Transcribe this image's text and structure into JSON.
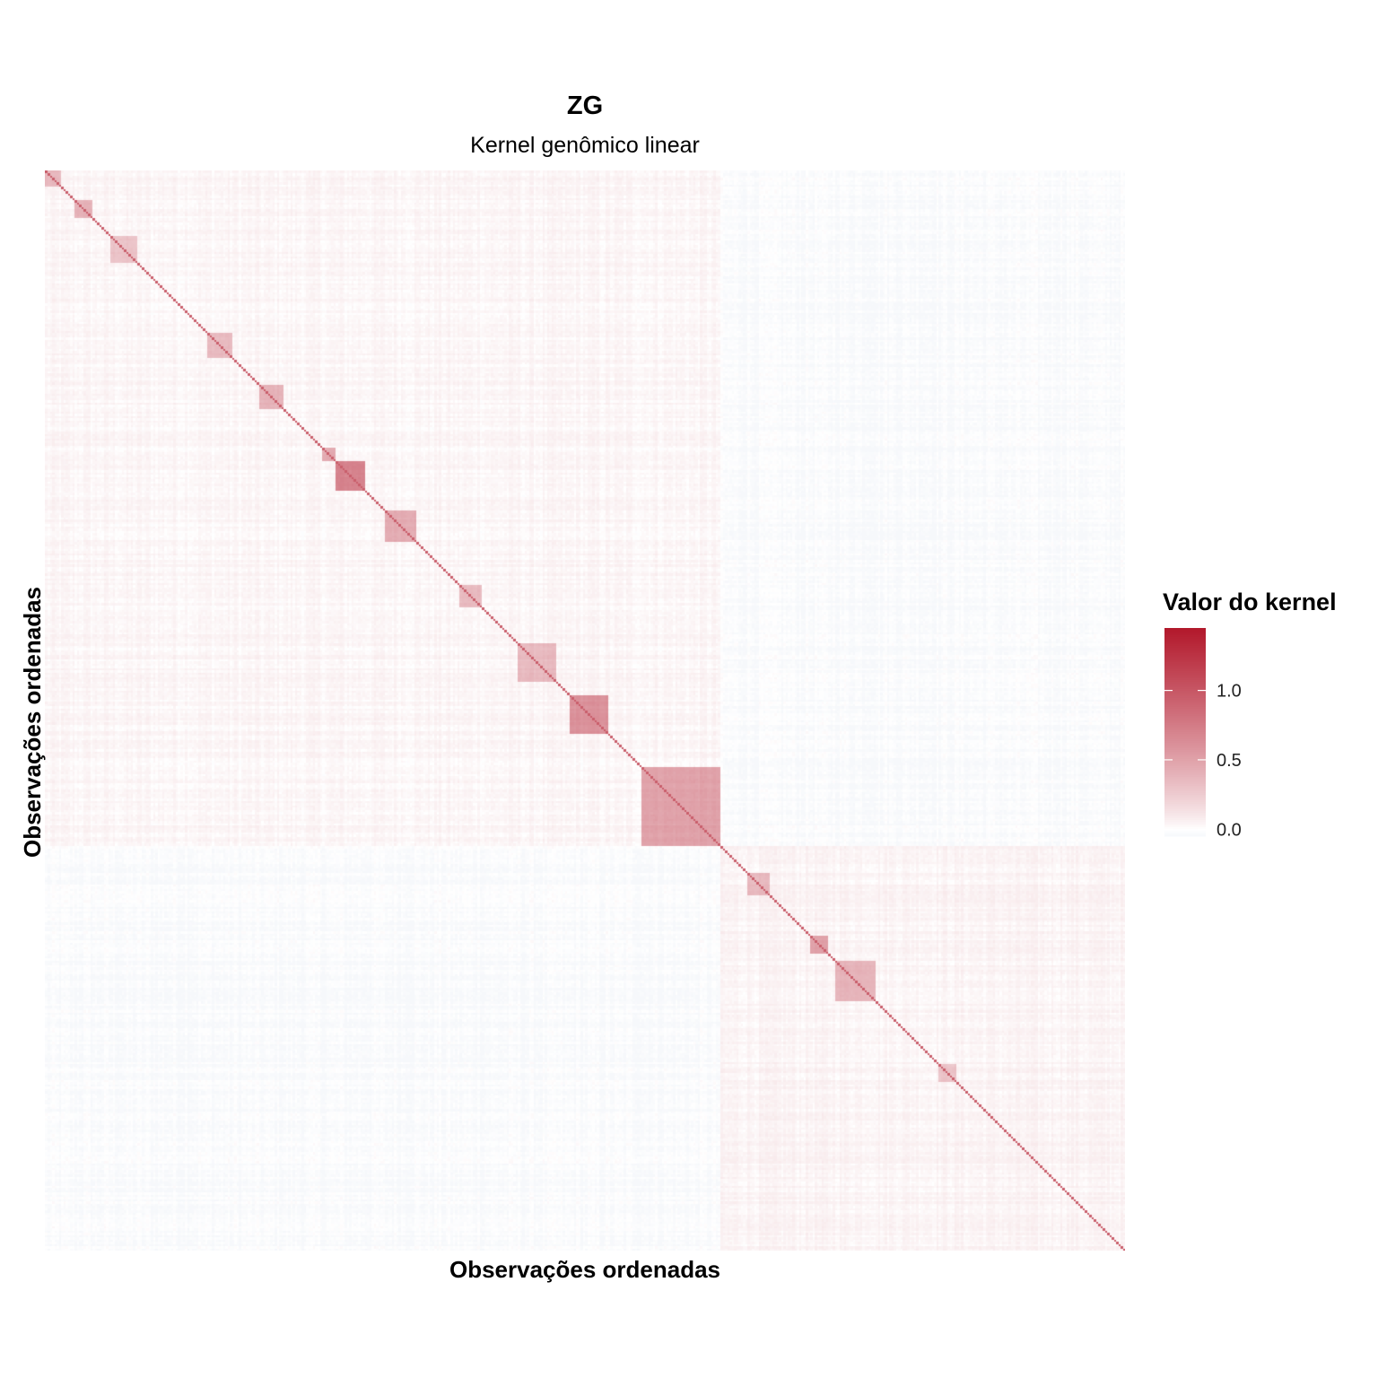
{
  "chart_data": {
    "type": "heatmap",
    "title": "ZG",
    "subtitle": "Kernel genômico linear",
    "xlabel": "Observações ordenadas",
    "ylabel": "Observações ordenadas",
    "legend": {
      "title": "Valor do kernel",
      "position": "right",
      "ticks": [
        0.0,
        0.5,
        1.0
      ],
      "tick_labels": [
        "0.0",
        "0.5",
        "1.0"
      ],
      "range": [
        -0.05,
        1.45
      ],
      "colors": {
        "low": "#f6f8fb",
        "zero": "#ffffff",
        "high": "#b2182b"
      }
    },
    "n_observations": 480,
    "groups": [
      {
        "size": 300,
        "within_value": 0.03,
        "cross_value": -0.025
      },
      {
        "size": 180,
        "within_value": 0.04
      }
    ],
    "diagonal_value": 0.95,
    "dense_blocks": [
      {
        "start": 0,
        "size": 7,
        "value": 0.35
      },
      {
        "start": 13,
        "size": 8,
        "value": 0.4
      },
      {
        "start": 29,
        "size": 12,
        "value": 0.3
      },
      {
        "start": 72,
        "size": 11,
        "value": 0.35
      },
      {
        "start": 95,
        "size": 11,
        "value": 0.4
      },
      {
        "start": 123,
        "size": 7,
        "value": 0.45
      },
      {
        "start": 129,
        "size": 13,
        "value": 0.7
      },
      {
        "start": 151,
        "size": 14,
        "value": 0.45
      },
      {
        "start": 184,
        "size": 10,
        "value": 0.35
      },
      {
        "start": 210,
        "size": 17,
        "value": 0.35
      },
      {
        "start": 233,
        "size": 17,
        "value": 0.6
      },
      {
        "start": 265,
        "size": 35,
        "value": 0.5
      },
      {
        "start": 312,
        "size": 10,
        "value": 0.35
      },
      {
        "start": 340,
        "size": 8,
        "value": 0.5
      },
      {
        "start": 351,
        "size": 18,
        "value": 0.4
      },
      {
        "start": 397,
        "size": 8,
        "value": 0.3
      }
    ],
    "grid": false
  }
}
